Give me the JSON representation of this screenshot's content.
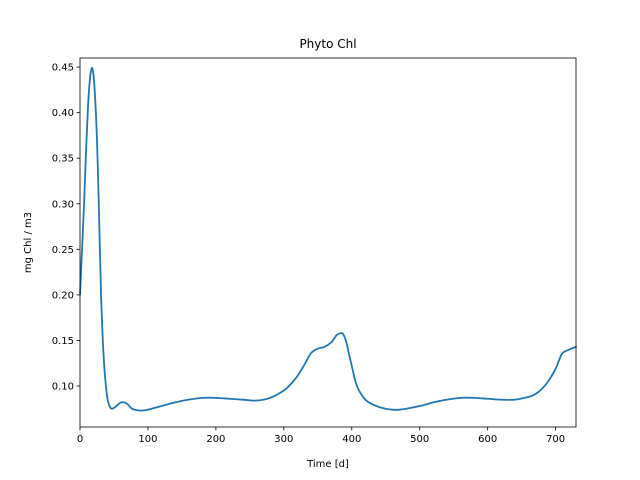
{
  "chart_data": {
    "type": "line",
    "title": "Phyto Chl",
    "xlabel": "Time [d]",
    "ylabel": "mg Chl / m3",
    "xlim": [
      0,
      730
    ],
    "ylim": [
      0.055,
      0.46
    ],
    "x_ticks": [
      0,
      100,
      200,
      300,
      400,
      500,
      600,
      700
    ],
    "x_tick_labels": [
      "0",
      "100",
      "200",
      "300",
      "400",
      "500",
      "600",
      "700"
    ],
    "y_ticks": [
      0.1,
      0.15,
      0.2,
      0.25,
      0.3,
      0.35,
      0.4,
      0.45
    ],
    "y_tick_labels": [
      "0.10",
      "0.15",
      "0.20",
      "0.25",
      "0.30",
      "0.35",
      "0.40",
      "0.45"
    ],
    "grid": false,
    "line_color": "#1f77b4",
    "x": [
      0,
      3,
      6,
      9,
      12,
      15,
      17,
      18,
      19,
      20,
      22,
      25,
      28,
      31,
      35,
      40,
      45,
      50,
      55,
      60,
      65,
      70,
      75,
      80,
      90,
      100,
      110,
      120,
      140,
      160,
      180,
      200,
      220,
      240,
      260,
      280,
      300,
      310,
      320,
      330,
      340,
      350,
      360,
      370,
      378,
      385,
      388,
      392,
      395,
      400,
      405,
      410,
      420,
      430,
      440,
      450,
      460,
      470,
      480,
      500,
      520,
      540,
      560,
      580,
      600,
      620,
      640,
      660,
      670,
      680,
      690,
      700,
      705,
      710,
      720,
      730
    ],
    "values": [
      0.2,
      0.25,
      0.3,
      0.36,
      0.41,
      0.44,
      0.448,
      0.449,
      0.446,
      0.44,
      0.42,
      0.37,
      0.29,
      0.2,
      0.13,
      0.088,
      0.076,
      0.076,
      0.079,
      0.082,
      0.082,
      0.08,
      0.076,
      0.074,
      0.073,
      0.074,
      0.076,
      0.078,
      0.082,
      0.085,
      0.087,
      0.087,
      0.086,
      0.085,
      0.084,
      0.087,
      0.095,
      0.102,
      0.111,
      0.123,
      0.136,
      0.141,
      0.143,
      0.148,
      0.156,
      0.158,
      0.156,
      0.148,
      0.138,
      0.122,
      0.106,
      0.096,
      0.085,
      0.08,
      0.077,
      0.075,
      0.074,
      0.074,
      0.075,
      0.078,
      0.082,
      0.085,
      0.087,
      0.087,
      0.086,
      0.085,
      0.085,
      0.088,
      0.091,
      0.097,
      0.106,
      0.119,
      0.128,
      0.136,
      0.14,
      0.143
    ]
  }
}
